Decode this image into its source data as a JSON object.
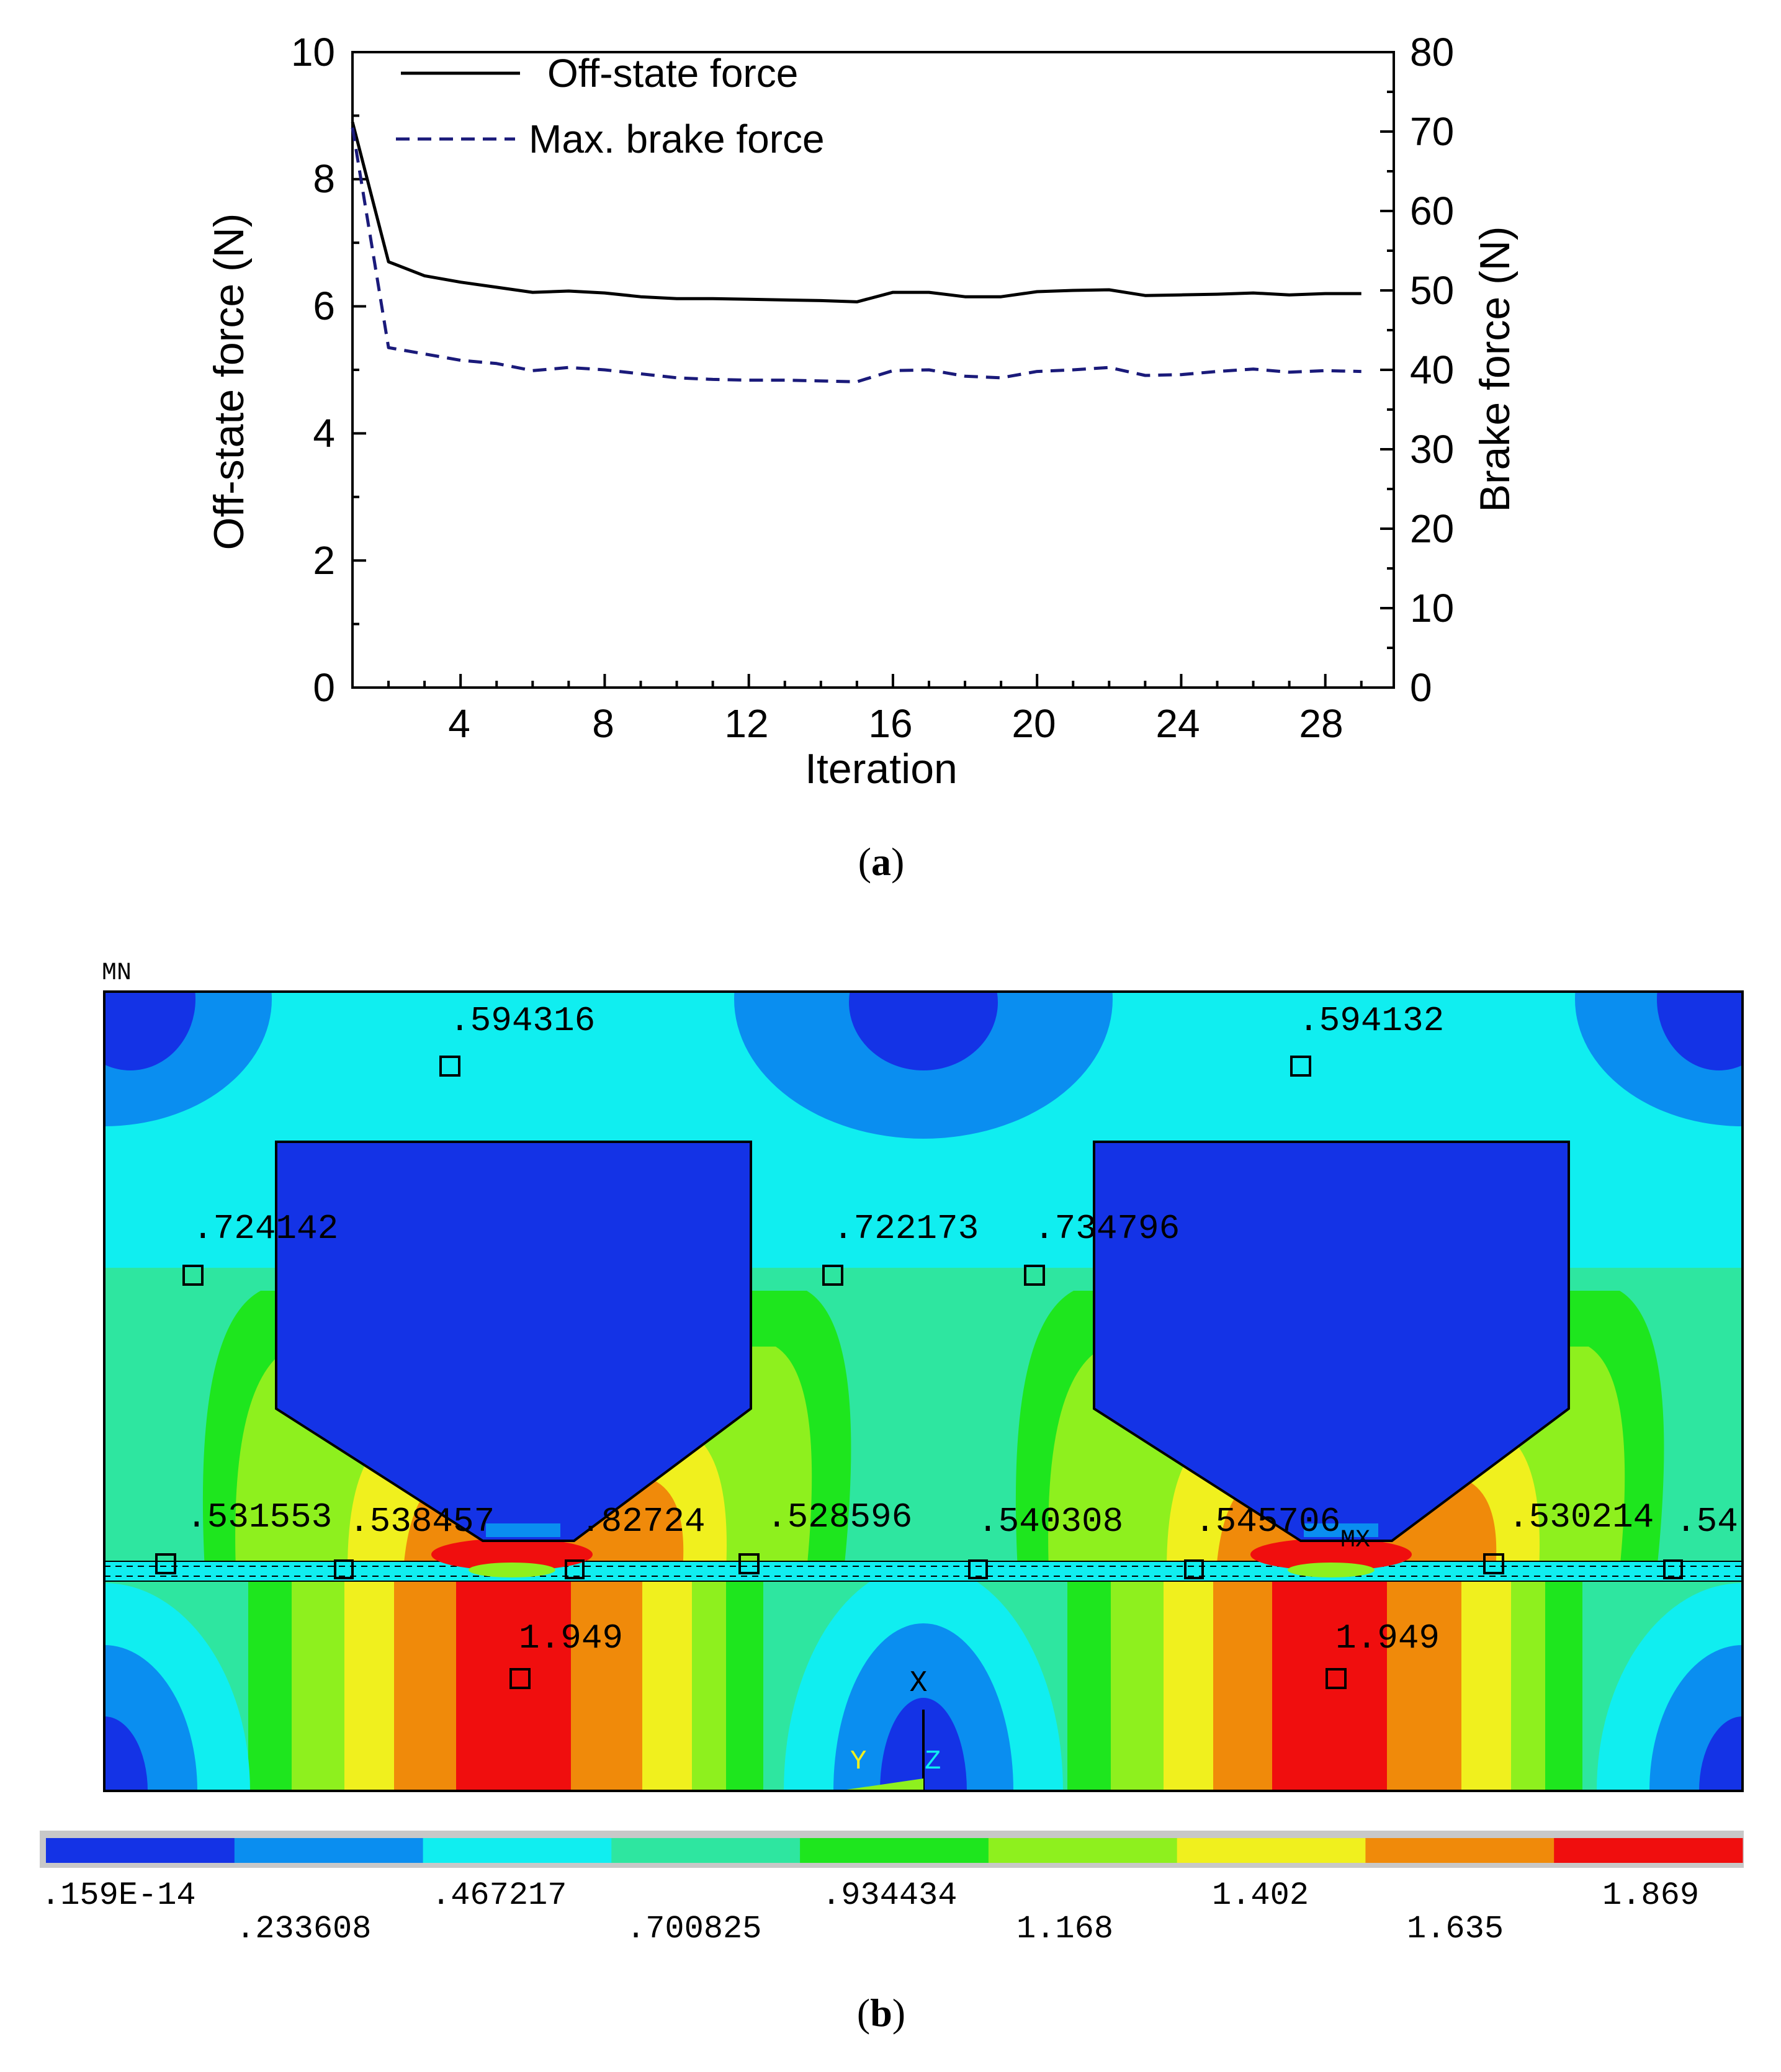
{
  "chart_data": [
    {
      "type": "line",
      "panel_caption_letter": "a",
      "xlabel": "Iteration",
      "ylabel_left": "Off-state force (N)",
      "ylabel_right": "Brake force (N)",
      "x_range": [
        1,
        30
      ],
      "x_ticks": [
        4,
        8,
        12,
        16,
        20,
        24,
        28
      ],
      "ylim_left": [
        0,
        10
      ],
      "yticks_left": [
        0,
        2,
        4,
        6,
        8,
        10
      ],
      "ylim_right": [
        0,
        80
      ],
      "yticks_right": [
        0,
        10,
        20,
        30,
        40,
        50,
        60,
        70,
        80
      ],
      "legend_position": "top-left",
      "x": [
        1,
        2,
        3,
        4,
        5,
        6,
        7,
        8,
        9,
        10,
        11,
        12,
        13,
        14,
        15,
        16,
        17,
        18,
        19,
        20,
        21,
        22,
        23,
        24,
        25,
        26,
        27,
        28,
        29
      ],
      "series": [
        {
          "name": "Off-state force",
          "axis": "left",
          "style": "solid",
          "color": "#000000",
          "values": [
            8.9,
            6.7,
            6.48,
            6.38,
            6.3,
            6.22,
            6.24,
            6.21,
            6.15,
            6.12,
            6.12,
            6.11,
            6.1,
            6.09,
            6.07,
            6.22,
            6.22,
            6.15,
            6.15,
            6.23,
            6.25,
            6.26,
            6.17,
            6.18,
            6.19,
            6.21,
            6.18,
            6.2,
            6.2
          ]
        },
        {
          "name": "Max. brake force",
          "axis": "right",
          "style": "dashed",
          "color": "#1a1a7a",
          "values": [
            70.5,
            42.8,
            42.0,
            41.2,
            40.8,
            39.9,
            40.3,
            40.0,
            39.5,
            39.0,
            38.8,
            38.7,
            38.7,
            38.6,
            38.5,
            39.9,
            40.0,
            39.2,
            39.0,
            39.8,
            40.0,
            40.3,
            39.3,
            39.4,
            39.8,
            40.1,
            39.7,
            39.9,
            39.8
          ]
        }
      ]
    },
    {
      "type": "heatmap",
      "panel_caption_letter": "b",
      "corner_label": "MN",
      "max_label": "MX",
      "triad_labels": {
        "x": "X",
        "y": "Y",
        "z": "Z"
      },
      "probe_values": [
        ".594316",
        ".594132",
        ".724142",
        ".722173",
        ".734796",
        ".531553",
        ".538457",
        ".82724",
        ".528596",
        ".540308",
        ".545706",
        ".530214",
        ".54",
        "1.949",
        "1.949"
      ],
      "colorbar": {
        "colors": [
          "#1433e6",
          "#0a8ef0",
          "#10eef0",
          "#2ee6a0",
          "#1ee61e",
          "#8ef01e",
          "#f0f01e",
          "#f08a0a",
          "#f00e0e"
        ],
        "labels_upper": [
          ".159E-14",
          ".467217",
          ".934434",
          "1.402",
          "1.869"
        ],
        "labels_lower": [
          ".233608",
          ".700825",
          "1.168",
          "1.635"
        ]
      }
    }
  ]
}
